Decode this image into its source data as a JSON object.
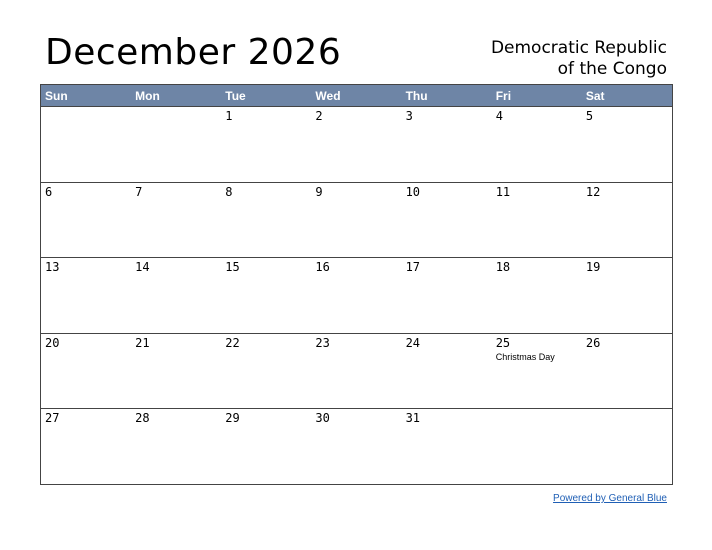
{
  "calendar_title": "December 2026",
  "country": [
    "Democratic Republic",
    "of the Congo"
  ],
  "weekdays": [
    "Sun",
    "Mon",
    "Tue",
    "Wed",
    "Thu",
    "Fri",
    "Sat"
  ],
  "weeks": [
    [
      "",
      "",
      "1",
      "2",
      "3",
      "4",
      "5"
    ],
    [
      "6",
      "7",
      "8",
      "9",
      "10",
      "11",
      "12"
    ],
    [
      "13",
      "14",
      "15",
      "16",
      "17",
      "18",
      "19"
    ],
    [
      "20",
      "21",
      "22",
      "23",
      "24",
      "25",
      "26"
    ],
    [
      "27",
      "28",
      "29",
      "30",
      "31",
      "",
      ""
    ]
  ],
  "events": {
    "25": "Christmas Day"
  },
  "footer_link": "Powered by General Blue",
  "colors": {
    "header": "#6e85a6",
    "link": "#1f5fb5"
  }
}
